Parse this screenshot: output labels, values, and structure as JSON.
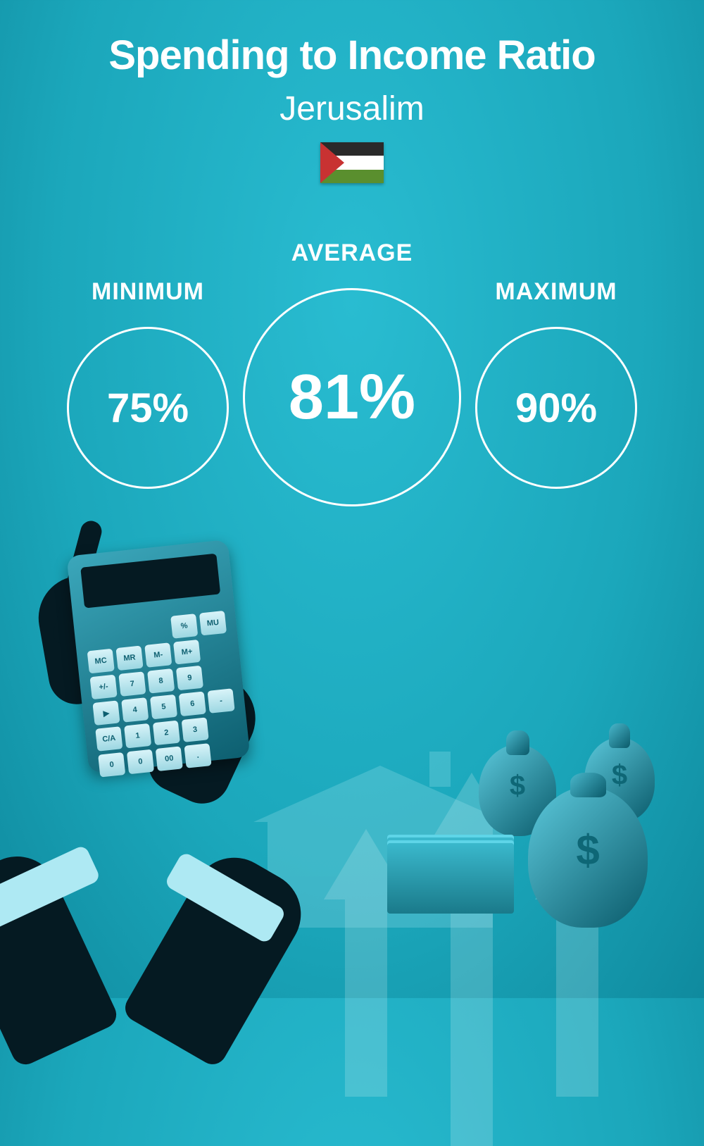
{
  "header": {
    "title": "Spending to Income Ratio",
    "subtitle": "Jerusalim"
  },
  "flag": {
    "stripes": [
      "#2a2a2a",
      "#ffffff",
      "#5a8f2e"
    ],
    "triangle": "#c83232"
  },
  "stats": {
    "minimum": {
      "label": "MINIMUM",
      "value": "75%"
    },
    "average": {
      "label": "AVERAGE",
      "value": "81%"
    },
    "maximum": {
      "label": "MAXIMUM",
      "value": "90%"
    }
  },
  "styling": {
    "background_gradient": [
      "#29bcd1",
      "#1ba7bb",
      "#0f8a9e"
    ],
    "text_color": "#ffffff",
    "circle_border_color": "#ffffff",
    "circle_border_width": 3,
    "circle_small_diameter": 230,
    "circle_large_diameter": 310,
    "title_fontsize": 58,
    "subtitle_fontsize": 48,
    "label_fontsize": 34,
    "value_small_fontsize": 58,
    "value_large_fontsize": 90
  },
  "calculator_keys": [
    "",
    "",
    "",
    "%",
    "MU",
    "MC",
    "MR",
    "M-",
    "M+",
    "",
    "+/-",
    "7",
    "8",
    "9",
    "",
    "▶",
    "4",
    "5",
    "6",
    "-",
    "C/A",
    "1",
    "2",
    "3",
    "",
    "0",
    "0",
    "00",
    ".",
    ""
  ]
}
